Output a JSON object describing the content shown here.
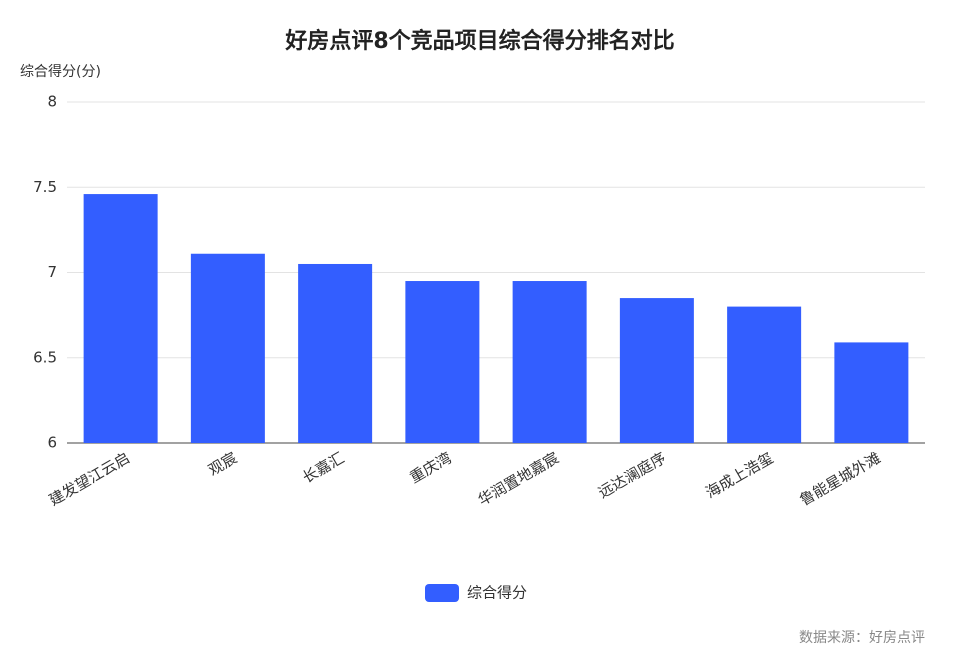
{
  "chart_data": {
    "type": "bar",
    "title": "好房点评8个竞品项目综合得分排名对比",
    "y_label": "综合得分(分)",
    "categories": [
      "建发望江云启",
      "观宸",
      "长嘉汇",
      "重庆湾",
      "华润置地嘉宸",
      "远达澜庭序",
      "海成上浩玺",
      "鲁能星城外滩"
    ],
    "series": [
      {
        "name": "综合得分",
        "color": "#335eff",
        "values": [
          7.46,
          7.11,
          7.05,
          6.95,
          6.95,
          6.85,
          6.8,
          6.59
        ]
      }
    ],
    "ylim": [
      6,
      8
    ],
    "yticks": [
      6,
      6.5,
      7,
      7.5,
      8
    ],
    "grid": true,
    "legend": "bottom",
    "source": "数据来源：好房点评"
  }
}
